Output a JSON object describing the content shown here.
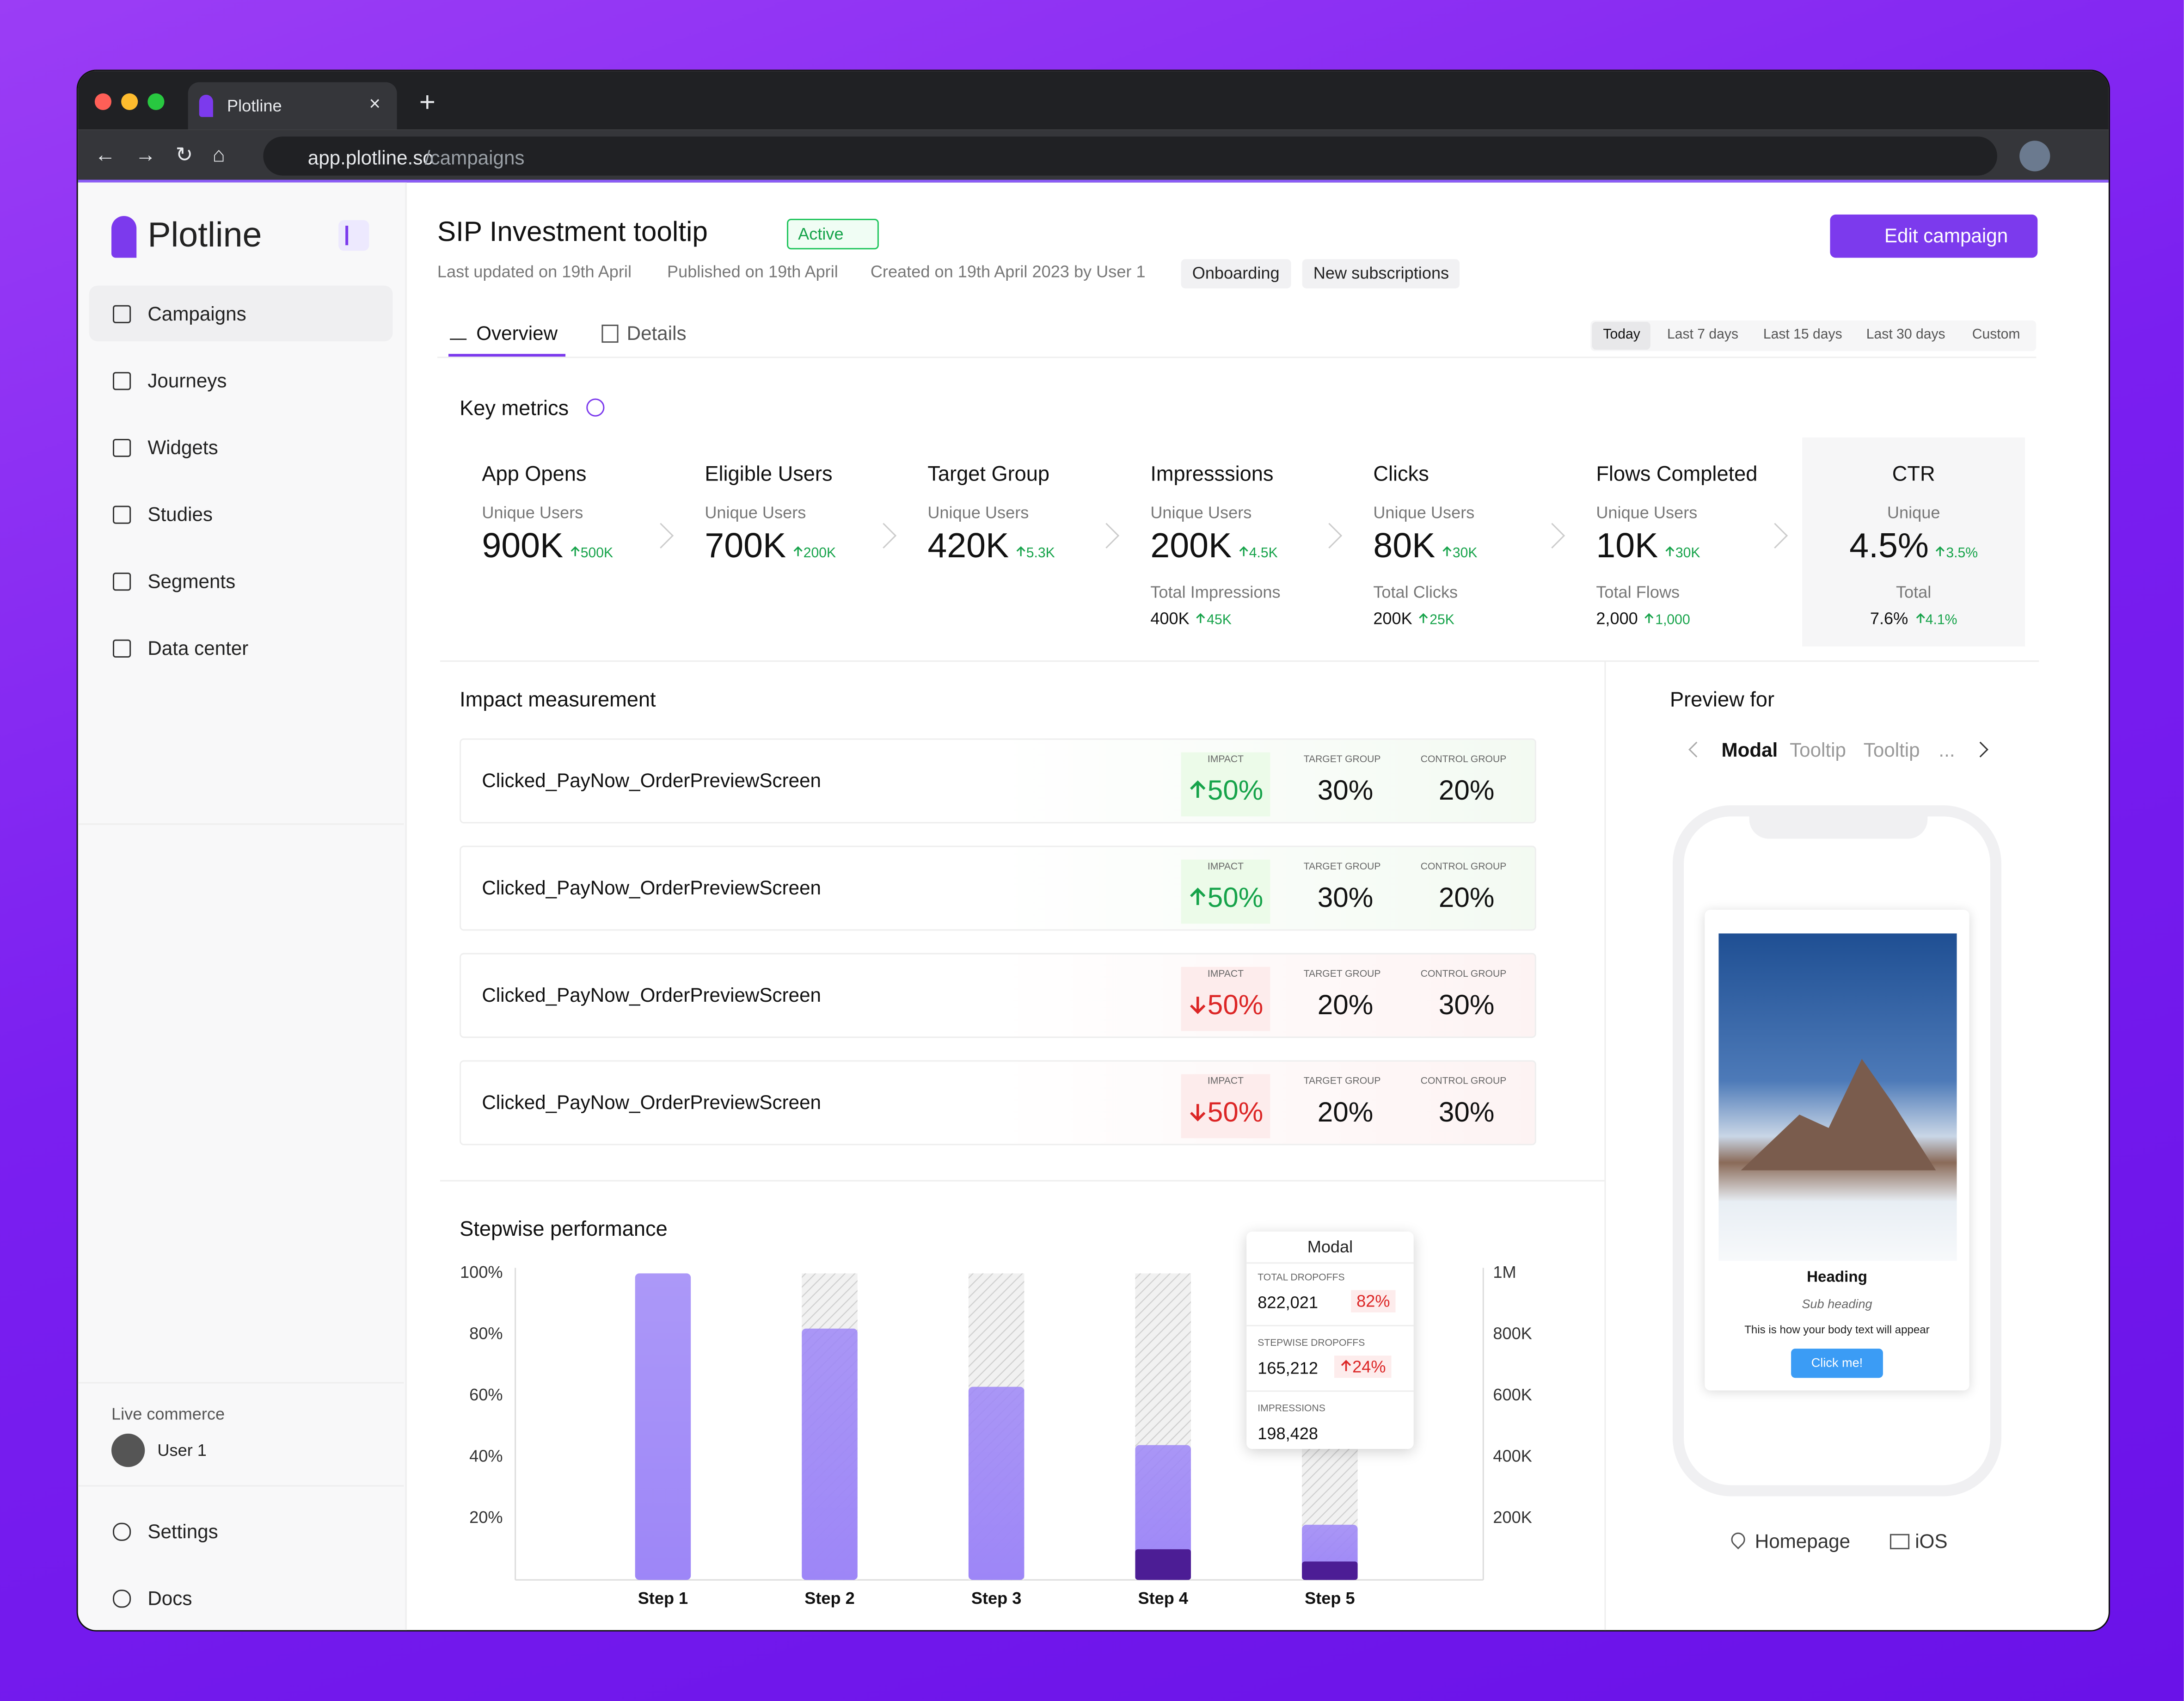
{
  "browser": {
    "tab": "Plotline",
    "url_host": "app.plotline.so",
    "url_path": "/campaigns"
  },
  "sidebar": {
    "brand": "Plotline",
    "nav": [
      "Campaigns",
      "Journeys",
      "Widgets",
      "Studies",
      "Segments",
      "Data center"
    ],
    "workspace": "Live commerce",
    "user": "User 1",
    "footer": [
      "Settings",
      "Docs"
    ]
  },
  "header": {
    "title": "SIP Investment tooltip",
    "status": "Active",
    "meta": [
      "Last updated on 19th April",
      "Published on 19th April",
      "Created on 19th April 2023 by User 1"
    ],
    "tags": [
      "Onboarding",
      "New subscriptions"
    ],
    "action": "Edit campaign"
  },
  "tabs": [
    "Overview",
    "Details"
  ],
  "ranges": [
    "Today",
    "Last 7 days",
    "Last 15 days",
    "Last 30 days",
    "Custom"
  ],
  "metrics": {
    "title": "Key metrics",
    "items": [
      {
        "name": "App Opens",
        "label": "Unique Users",
        "value": "900K",
        "delta": "500K"
      },
      {
        "name": "Eligible Users",
        "label": "Unique Users",
        "value": "700K",
        "delta": "200K"
      },
      {
        "name": "Target Group",
        "label": "Unique Users",
        "value": "420K",
        "delta": "5.3K"
      },
      {
        "name": "Impresssions",
        "label": "Unique Users",
        "value": "200K",
        "delta": "4.5K",
        "total_label": "Total Impressions",
        "total": "400K",
        "total_delta": "45K"
      },
      {
        "name": "Clicks",
        "label": "Unique Users",
        "value": "80K",
        "delta": "30K",
        "total_label": "Total Clicks",
        "total": "200K",
        "total_delta": "25K"
      },
      {
        "name": "Flows Completed",
        "label": "Unique Users",
        "value": "10K",
        "delta": "30K",
        "total_label": "Total Flows",
        "total": "2,000",
        "total_delta": "1,000"
      },
      {
        "name": "CTR",
        "label": "Unique",
        "value": "4.5%",
        "delta": "3.5%",
        "total_label": "Total",
        "total": "7.6%",
        "total_delta": "4.1%"
      }
    ]
  },
  "impact": {
    "title": "Impact measurement",
    "columns": [
      "IMPACT",
      "TARGET GROUP",
      "CONTROL GROUP"
    ],
    "rows": [
      {
        "event": "Clicked_PayNow_OrderPreviewScreen",
        "impact": "50%",
        "direction": "up",
        "target": "30%",
        "control": "20%"
      },
      {
        "event": "Clicked_PayNow_OrderPreviewScreen",
        "impact": "50%",
        "direction": "up",
        "target": "30%",
        "control": "20%"
      },
      {
        "event": "Clicked_PayNow_OrderPreviewScreen",
        "impact": "50%",
        "direction": "down",
        "target": "20%",
        "control": "30%"
      },
      {
        "event": "Clicked_PayNow_OrderPreviewScreen",
        "impact": "50%",
        "direction": "down",
        "target": "20%",
        "control": "30%"
      }
    ]
  },
  "chart_data": {
    "type": "bar",
    "title": "Stepwise performance",
    "categories": [
      "Step 1",
      "Step 2",
      "Step 3",
      "Step 4",
      "Step 5"
    ],
    "values": [
      100,
      82,
      63,
      44,
      18
    ],
    "color": "#9d86f7",
    "inner_values": [
      0,
      0,
      0,
      10,
      6
    ],
    "inner_color": "#4c1d95",
    "ylim": [
      0,
      100
    ],
    "yticks": [
      {
        "value": 20,
        "label": "20%"
      },
      {
        "value": 40,
        "label": "40%"
      },
      {
        "value": 60,
        "label": "60%"
      },
      {
        "value": 80,
        "label": "80%"
      },
      {
        "value": 100,
        "label": "100%"
      }
    ],
    "y2lim": [
      0,
      1000000
    ],
    "y2ticks": [
      {
        "value": 200000,
        "label": "200K"
      },
      {
        "value": 400000,
        "label": "400K"
      },
      {
        "value": 600000,
        "label": "600K"
      },
      {
        "value": 800000,
        "label": "800K"
      },
      {
        "value": 1000000,
        "label": "1M"
      }
    ],
    "tooltip": {
      "title": "Modal",
      "rows": [
        {
          "label": "TOTAL DROPOFFS",
          "value": "822,021",
          "change": "82%"
        },
        {
          "label": "STEPWISE DROPOFFS",
          "value": "165,212",
          "change": "24%"
        },
        {
          "label": "IMPRESSIONS",
          "value": "198,428"
        }
      ]
    }
  },
  "preview": {
    "title": "Preview for",
    "types": [
      "Modal",
      "Tooltip",
      "Tooltip",
      "..."
    ],
    "modal": {
      "heading": "Heading",
      "subheading": "Sub heading",
      "body": "This is how your body text will appear",
      "button": "Click me!"
    },
    "page": "Homepage",
    "platform": "iOS"
  }
}
